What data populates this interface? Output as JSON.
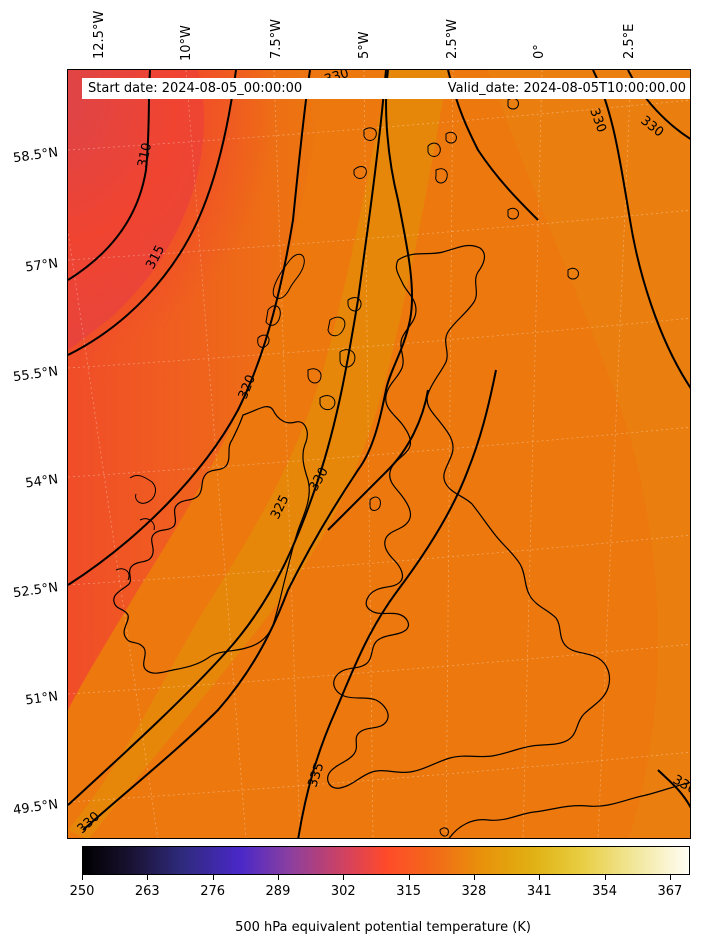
{
  "header": {
    "start_date": "Start date: 2024-08-05_00:00:00",
    "valid_date": "Valid_date: 2024-08-05T10:00:00.00"
  },
  "axes": {
    "longitude_labels": [
      "12.5°W",
      "10°W",
      "7.5°W",
      "5°W",
      "2.5°W",
      "0°",
      "2.5°E"
    ],
    "latitude_labels": [
      "58.5°N",
      "57°N",
      "55.5°N",
      "54°N",
      "52.5°N",
      "51°N",
      "49.5°N"
    ]
  },
  "contours": {
    "levels": [
      "310",
      "315",
      "320",
      "325",
      "330",
      "335"
    ],
    "labels": [
      "310",
      "315",
      "320",
      "325",
      "330",
      "330",
      "330",
      "330",
      "330",
      "330",
      "335",
      "330"
    ]
  },
  "colorbar": {
    "title": "500 hPa equivalent potential temperature (K)",
    "ticks": [
      "250",
      "263",
      "276",
      "289",
      "302",
      "315",
      "328",
      "341",
      "354",
      "367"
    ],
    "min": 250,
    "max": 371,
    "colormap": "CMRmap-like: black → indigo → red → orange → yellow → white"
  },
  "colors": {
    "cold_west": "#e04a3a",
    "warm_band": "#e58a0a",
    "background_orange": "#ec780e",
    "contour_line": "#000000",
    "coastline": "#000000"
  }
}
